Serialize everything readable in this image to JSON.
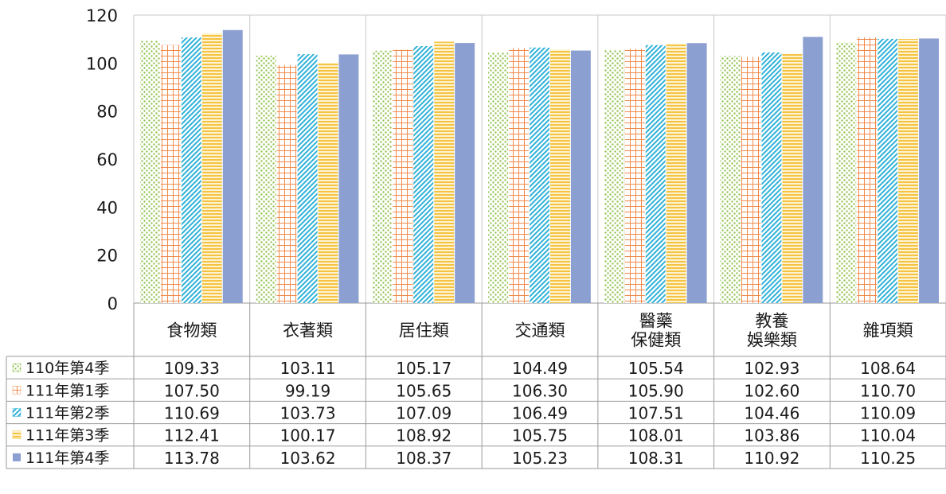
{
  "chart_data": {
    "type": "bar",
    "title": "",
    "xlabel": "",
    "ylabel": "",
    "ylim": [
      0,
      120
    ],
    "yticks": [
      "0",
      "20",
      "40",
      "60",
      "80",
      "100",
      "120"
    ],
    "grid": true,
    "legend_placement": "data-table",
    "categories": [
      [
        "食物類"
      ],
      [
        "衣著類"
      ],
      [
        "居住類"
      ],
      [
        "交通類"
      ],
      [
        "醫藥",
        "保健類"
      ],
      [
        "教養",
        "娛樂類"
      ],
      [
        "雜項類"
      ]
    ],
    "series": [
      {
        "name": "110年第4季",
        "pattern": "dots",
        "color": "#92c353",
        "values": [
          109.33,
          103.11,
          105.17,
          104.49,
          105.54,
          102.93,
          108.64
        ],
        "labels": [
          "109.33",
          "103.11",
          "105.17",
          "104.49",
          "105.54",
          "102.93",
          "108.64"
        ]
      },
      {
        "name": "111年第1季",
        "pattern": "grid",
        "color": "#f08a4b",
        "values": [
          107.5,
          99.19,
          105.65,
          106.3,
          105.9,
          102.6,
          110.7
        ],
        "labels": [
          "107.50",
          "99.19",
          "105.65",
          "106.30",
          "105.90",
          "102.60",
          "110.70"
        ]
      },
      {
        "name": "111年第2季",
        "pattern": "diagonal",
        "color": "#2fb1d8",
        "values": [
          110.69,
          103.73,
          107.09,
          106.49,
          107.51,
          104.46,
          110.09
        ],
        "labels": [
          "110.69",
          "103.73",
          "107.09",
          "106.49",
          "107.51",
          "104.46",
          "110.09"
        ]
      },
      {
        "name": "111年第3季",
        "pattern": "hlines",
        "color": "#f5c342",
        "values": [
          112.41,
          100.17,
          108.92,
          105.75,
          108.01,
          103.86,
          110.04
        ],
        "labels": [
          "112.41",
          "100.17",
          "108.92",
          "105.75",
          "108.01",
          "103.86",
          "110.04"
        ]
      },
      {
        "name": "111年第4季",
        "pattern": "solid",
        "color": "#8c9fd1",
        "values": [
          113.78,
          103.62,
          108.37,
          105.23,
          108.31,
          110.92,
          110.25
        ],
        "labels": [
          "113.78",
          "103.62",
          "108.37",
          "105.23",
          "108.31",
          "110.92",
          "110.25"
        ]
      }
    ]
  }
}
